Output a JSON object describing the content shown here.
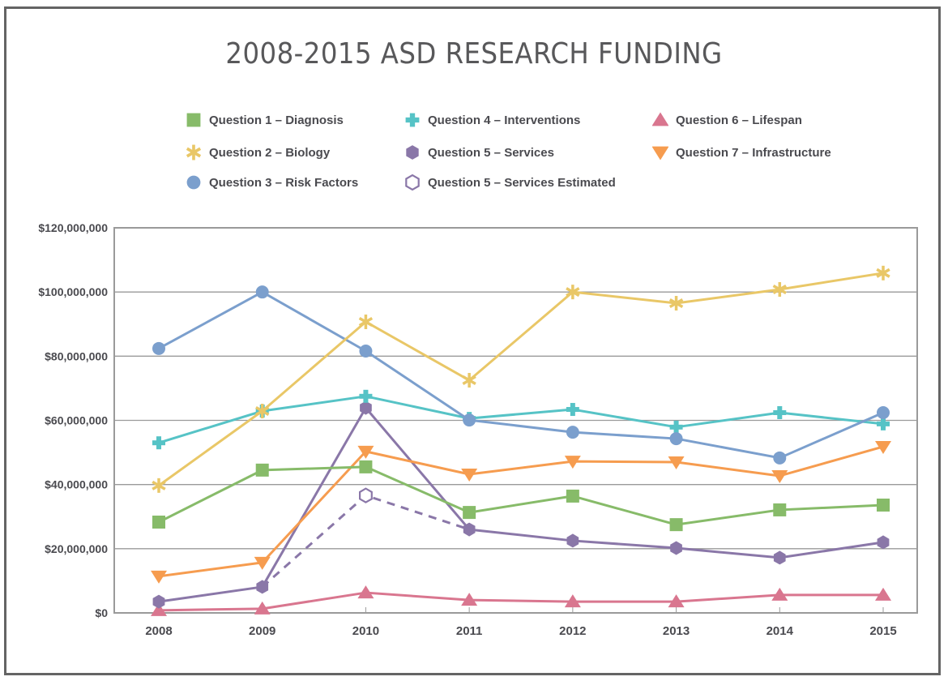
{
  "chart_data": {
    "type": "line",
    "title": "2008-2015 ASD RESEARCH FUNDING",
    "xlabel": "",
    "ylabel": "",
    "x": [
      "2008",
      "2009",
      "2010",
      "2011",
      "2012",
      "2013",
      "2014",
      "2015"
    ],
    "ylim": [
      0,
      120000000
    ],
    "yticks": [
      0,
      20000000,
      40000000,
      60000000,
      80000000,
      100000000,
      120000000
    ],
    "ytick_labels": [
      "$0",
      "$20,000,000",
      "$40,000,000",
      "$60,000,000",
      "$80,000,000",
      "$100,000,000",
      "$120,000,000"
    ],
    "grid": "horizontal",
    "legend_position": "top",
    "series": [
      {
        "name": "Question 1 – Diagnosis",
        "marker": "square",
        "color": "#87bb69",
        "dashed": false,
        "values": [
          28300000,
          44500000,
          45500000,
          31300000,
          36400000,
          27500000,
          32100000,
          33600000
        ]
      },
      {
        "name": "Question 2 – Biology",
        "marker": "asterisk",
        "color": "#e9c767",
        "dashed": false,
        "values": [
          39700000,
          62900000,
          90700000,
          72500000,
          100000000,
          96500000,
          100800000,
          105900000
        ]
      },
      {
        "name": "Question 3 – Risk Factors",
        "marker": "circle",
        "color": "#7b9fcd",
        "dashed": false,
        "values": [
          82400000,
          100000000,
          81600000,
          60100000,
          56300000,
          54300000,
          48300000,
          62400000
        ]
      },
      {
        "name": "Question 4 – Interventions",
        "marker": "plus",
        "color": "#56c3c6",
        "dashed": false,
        "values": [
          53000000,
          62900000,
          67500000,
          60600000,
          63400000,
          57900000,
          62400000,
          58900000
        ]
      },
      {
        "name": "Question 5 – Services",
        "marker": "hexagon",
        "color": "#8a77a8",
        "dashed": false,
        "values": [
          3500000,
          8100000,
          63900000,
          26000000,
          22500000,
          20200000,
          17200000,
          22000000
        ]
      },
      {
        "name": "Question 5 – Services Estimated",
        "marker": "hexagon-open",
        "color": "#8a77a8",
        "dashed": true,
        "values": [
          null,
          8100000,
          36600000,
          26000000,
          null,
          null,
          null,
          null
        ]
      },
      {
        "name": "Question 6 – Lifespan",
        "marker": "triangle-up",
        "color": "#d9768f",
        "dashed": false,
        "values": [
          800000,
          1300000,
          6300000,
          4000000,
          3500000,
          3500000,
          5600000,
          5600000
        ]
      },
      {
        "name": "Question 7 – Infrastructure",
        "marker": "triangle-down",
        "color": "#f69c4f",
        "dashed": false,
        "values": [
          11400000,
          15700000,
          50300000,
          43200000,
          47200000,
          47000000,
          42700000,
          51800000
        ]
      }
    ],
    "legend": [
      {
        "label": "Question 1 – Diagnosis",
        "series": 0
      },
      {
        "label": "Question 2 – Biology",
        "series": 1
      },
      {
        "label": "Question 3 – Risk Factors",
        "series": 2
      },
      {
        "label": "Question 4 – Interventions",
        "series": 3
      },
      {
        "label": "Question 5 – Services",
        "series": 4
      },
      {
        "label": "Question 5 – Services Estimated",
        "series": 5
      },
      {
        "label": "Question 6 – Lifespan",
        "series": 6
      },
      {
        "label": "Question 7 – Infrastructure",
        "series": 7
      }
    ]
  }
}
